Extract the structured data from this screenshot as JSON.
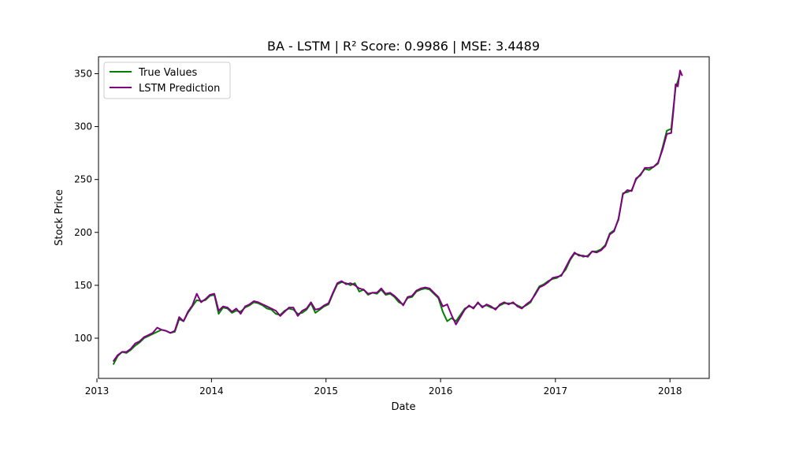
{
  "chart_data": {
    "type": "line",
    "title": "BA - LSTM | R² Score: 0.9986 | MSE: 3.4489",
    "xlabel": "Date",
    "ylabel": "Stock Price",
    "xlim": [
      "2013-01-06",
      "2018-05-06"
    ],
    "ylim": [
      62,
      366
    ],
    "x_ticks": [
      {
        "date": "2013-01-01",
        "label": "2013"
      },
      {
        "date": "2014-01-01",
        "label": "2014"
      },
      {
        "date": "2015-01-01",
        "label": "2015"
      },
      {
        "date": "2016-01-01",
        "label": "2016"
      },
      {
        "date": "2017-01-01",
        "label": "2017"
      },
      {
        "date": "2018-01-01",
        "label": "2018"
      }
    ],
    "y_ticks": [
      100,
      150,
      200,
      250,
      300,
      350
    ],
    "grid": false,
    "legend_position": "top-left",
    "series": [
      {
        "name": "True Values",
        "color": "#008000",
        "points": [
          [
            "2013-02-22",
            75
          ],
          [
            "2013-03-08",
            83
          ],
          [
            "2013-03-22",
            87
          ],
          [
            "2013-04-05",
            86
          ],
          [
            "2013-04-19",
            89
          ],
          [
            "2013-05-03",
            93
          ],
          [
            "2013-05-17",
            96
          ],
          [
            "2013-05-31",
            100
          ],
          [
            "2013-06-14",
            102
          ],
          [
            "2013-06-28",
            104
          ],
          [
            "2013-07-12",
            106
          ],
          [
            "2013-07-26",
            108
          ],
          [
            "2013-08-09",
            107
          ],
          [
            "2013-08-23",
            105
          ],
          [
            "2013-09-06",
            106
          ],
          [
            "2013-09-20",
            118
          ],
          [
            "2013-10-04",
            116
          ],
          [
            "2013-10-18",
            124
          ],
          [
            "2013-11-01",
            130
          ],
          [
            "2013-11-15",
            136
          ],
          [
            "2013-11-29",
            135
          ],
          [
            "2013-12-13",
            136
          ],
          [
            "2013-12-27",
            140
          ],
          [
            "2014-01-10",
            141
          ],
          [
            "2014-01-24",
            123
          ],
          [
            "2014-02-07",
            129
          ],
          [
            "2014-02-21",
            128
          ],
          [
            "2014-03-07",
            124
          ],
          [
            "2014-03-21",
            126
          ],
          [
            "2014-04-04",
            125
          ],
          [
            "2014-04-18",
            129
          ],
          [
            "2014-05-02",
            131
          ],
          [
            "2014-05-16",
            134
          ],
          [
            "2014-05-30",
            133
          ],
          [
            "2014-06-13",
            131
          ],
          [
            "2014-06-27",
            128
          ],
          [
            "2014-07-11",
            127
          ],
          [
            "2014-07-25",
            123
          ],
          [
            "2014-08-08",
            122
          ],
          [
            "2014-08-22",
            126
          ],
          [
            "2014-09-05",
            128
          ],
          [
            "2014-09-19",
            127
          ],
          [
            "2014-10-03",
            123
          ],
          [
            "2014-10-17",
            124
          ],
          [
            "2014-10-31",
            127
          ],
          [
            "2014-11-14",
            133
          ],
          [
            "2014-11-28",
            124
          ],
          [
            "2014-12-12",
            127
          ],
          [
            "2014-12-26",
            130
          ],
          [
            "2015-01-09",
            132
          ],
          [
            "2015-01-23",
            142
          ],
          [
            "2015-02-06",
            151
          ],
          [
            "2015-02-20",
            153
          ],
          [
            "2015-03-06",
            152
          ],
          [
            "2015-03-20",
            150
          ],
          [
            "2015-04-03",
            152
          ],
          [
            "2015-04-17",
            144
          ],
          [
            "2015-05-01",
            146
          ],
          [
            "2015-05-15",
            141
          ],
          [
            "2015-05-29",
            143
          ],
          [
            "2015-06-12",
            142
          ],
          [
            "2015-06-26",
            146
          ],
          [
            "2015-07-10",
            141
          ],
          [
            "2015-07-24",
            142
          ],
          [
            "2015-08-07",
            139
          ],
          [
            "2015-08-21",
            134
          ],
          [
            "2015-09-04",
            132
          ],
          [
            "2015-09-18",
            138
          ],
          [
            "2015-10-02",
            139
          ],
          [
            "2015-10-16",
            144
          ],
          [
            "2015-10-30",
            146
          ],
          [
            "2015-11-13",
            147
          ],
          [
            "2015-11-27",
            146
          ],
          [
            "2015-12-11",
            142
          ],
          [
            "2015-12-25",
            138
          ],
          [
            "2016-01-08",
            125
          ],
          [
            "2016-01-22",
            116
          ],
          [
            "2016-02-05",
            119
          ],
          [
            "2016-02-19",
            116
          ],
          [
            "2016-03-04",
            122
          ],
          [
            "2016-03-18",
            128
          ],
          [
            "2016-04-01",
            130
          ],
          [
            "2016-04-15",
            129
          ],
          [
            "2016-04-29",
            133
          ],
          [
            "2016-05-13",
            130
          ],
          [
            "2016-05-27",
            131
          ],
          [
            "2016-06-10",
            129
          ],
          [
            "2016-06-24",
            128
          ],
          [
            "2016-07-08",
            131
          ],
          [
            "2016-07-22",
            133
          ],
          [
            "2016-08-05",
            133
          ],
          [
            "2016-08-19",
            133
          ],
          [
            "2016-09-02",
            131
          ],
          [
            "2016-09-16",
            129
          ],
          [
            "2016-09-30",
            131
          ],
          [
            "2016-10-14",
            134
          ],
          [
            "2016-10-28",
            142
          ],
          [
            "2016-11-11",
            149
          ],
          [
            "2016-11-25",
            151
          ],
          [
            "2016-12-09",
            154
          ],
          [
            "2016-12-23",
            156
          ],
          [
            "2017-01-06",
            157
          ],
          [
            "2017-01-20",
            160
          ],
          [
            "2017-02-03",
            165
          ],
          [
            "2017-02-17",
            174
          ],
          [
            "2017-03-03",
            180
          ],
          [
            "2017-03-17",
            179
          ],
          [
            "2017-03-31",
            177
          ],
          [
            "2017-04-14",
            178
          ],
          [
            "2017-04-28",
            182
          ],
          [
            "2017-05-12",
            182
          ],
          [
            "2017-05-26",
            184
          ],
          [
            "2017-06-09",
            188
          ],
          [
            "2017-06-23",
            199
          ],
          [
            "2017-07-07",
            202
          ],
          [
            "2017-07-21",
            212
          ],
          [
            "2017-08-04",
            237
          ],
          [
            "2017-08-18",
            238
          ],
          [
            "2017-09-01",
            240
          ],
          [
            "2017-09-15",
            250
          ],
          [
            "2017-09-29",
            255
          ],
          [
            "2017-10-13",
            260
          ],
          [
            "2017-10-27",
            259
          ],
          [
            "2017-11-10",
            262
          ],
          [
            "2017-11-24",
            265
          ],
          [
            "2017-12-08",
            280
          ],
          [
            "2017-12-22",
            296
          ],
          [
            "2018-01-05",
            298
          ],
          [
            "2018-01-12",
            318
          ],
          [
            "2018-01-19",
            337
          ],
          [
            "2018-01-26",
            343
          ],
          [
            "2018-02-02",
            350
          ]
        ]
      },
      {
        "name": "LSTM Prediction",
        "color": "#800080",
        "points": [
          [
            "2013-02-22",
            78
          ],
          [
            "2013-03-08",
            84
          ],
          [
            "2013-03-22",
            87
          ],
          [
            "2013-04-05",
            87
          ],
          [
            "2013-04-19",
            90
          ],
          [
            "2013-05-03",
            95
          ],
          [
            "2013-05-17",
            97
          ],
          [
            "2013-05-31",
            101
          ],
          [
            "2013-06-14",
            103
          ],
          [
            "2013-06-28",
            105
          ],
          [
            "2013-07-12",
            110
          ],
          [
            "2013-07-26",
            108
          ],
          [
            "2013-08-09",
            107
          ],
          [
            "2013-08-23",
            105
          ],
          [
            "2013-09-06",
            107
          ],
          [
            "2013-09-20",
            120
          ],
          [
            "2013-10-04",
            116
          ],
          [
            "2013-10-18",
            125
          ],
          [
            "2013-11-01",
            131
          ],
          [
            "2013-11-15",
            142
          ],
          [
            "2013-11-29",
            134
          ],
          [
            "2013-12-13",
            137
          ],
          [
            "2013-12-27",
            141
          ],
          [
            "2014-01-10",
            142
          ],
          [
            "2014-01-24",
            126
          ],
          [
            "2014-02-07",
            130
          ],
          [
            "2014-02-21",
            129
          ],
          [
            "2014-03-07",
            125
          ],
          [
            "2014-03-21",
            128
          ],
          [
            "2014-04-04",
            123
          ],
          [
            "2014-04-18",
            130
          ],
          [
            "2014-05-02",
            132
          ],
          [
            "2014-05-16",
            135
          ],
          [
            "2014-05-30",
            134
          ],
          [
            "2014-06-13",
            132
          ],
          [
            "2014-06-27",
            130
          ],
          [
            "2014-07-11",
            128
          ],
          [
            "2014-07-25",
            126
          ],
          [
            "2014-08-08",
            121
          ],
          [
            "2014-08-22",
            125
          ],
          [
            "2014-09-05",
            129
          ],
          [
            "2014-09-19",
            129
          ],
          [
            "2014-10-03",
            121
          ],
          [
            "2014-10-17",
            126
          ],
          [
            "2014-10-31",
            128
          ],
          [
            "2014-11-14",
            134
          ],
          [
            "2014-11-28",
            127
          ],
          [
            "2014-12-12",
            128
          ],
          [
            "2014-12-26",
            131
          ],
          [
            "2015-01-09",
            133
          ],
          [
            "2015-01-23",
            143
          ],
          [
            "2015-02-06",
            152
          ],
          [
            "2015-02-20",
            154
          ],
          [
            "2015-03-06",
            151
          ],
          [
            "2015-03-20",
            152
          ],
          [
            "2015-04-03",
            150
          ],
          [
            "2015-04-17",
            147
          ],
          [
            "2015-05-01",
            146
          ],
          [
            "2015-05-15",
            142
          ],
          [
            "2015-05-29",
            143
          ],
          [
            "2015-06-12",
            143
          ],
          [
            "2015-06-26",
            147
          ],
          [
            "2015-07-10",
            142
          ],
          [
            "2015-07-24",
            143
          ],
          [
            "2015-08-07",
            140
          ],
          [
            "2015-08-21",
            136
          ],
          [
            "2015-09-04",
            131
          ],
          [
            "2015-09-18",
            139
          ],
          [
            "2015-10-02",
            140
          ],
          [
            "2015-10-16",
            145
          ],
          [
            "2015-10-30",
            147
          ],
          [
            "2015-11-13",
            148
          ],
          [
            "2015-11-27",
            147
          ],
          [
            "2015-12-11",
            143
          ],
          [
            "2015-12-25",
            139
          ],
          [
            "2016-01-08",
            130
          ],
          [
            "2016-01-22",
            132
          ],
          [
            "2016-02-05",
            122
          ],
          [
            "2016-02-19",
            113
          ],
          [
            "2016-03-04",
            120
          ],
          [
            "2016-03-18",
            127
          ],
          [
            "2016-04-01",
            131
          ],
          [
            "2016-04-15",
            128
          ],
          [
            "2016-04-29",
            134
          ],
          [
            "2016-05-13",
            129
          ],
          [
            "2016-05-27",
            132
          ],
          [
            "2016-06-10",
            130
          ],
          [
            "2016-06-24",
            127
          ],
          [
            "2016-07-08",
            132
          ],
          [
            "2016-07-22",
            134
          ],
          [
            "2016-08-05",
            132
          ],
          [
            "2016-08-19",
            134
          ],
          [
            "2016-09-02",
            130
          ],
          [
            "2016-09-16",
            128
          ],
          [
            "2016-09-30",
            132
          ],
          [
            "2016-10-14",
            135
          ],
          [
            "2016-10-28",
            141
          ],
          [
            "2016-11-11",
            148
          ],
          [
            "2016-11-25",
            150
          ],
          [
            "2016-12-09",
            153
          ],
          [
            "2016-12-23",
            157
          ],
          [
            "2017-01-06",
            158
          ],
          [
            "2017-01-20",
            159
          ],
          [
            "2017-02-03",
            167
          ],
          [
            "2017-02-17",
            175
          ],
          [
            "2017-03-03",
            181
          ],
          [
            "2017-03-17",
            178
          ],
          [
            "2017-03-31",
            178
          ],
          [
            "2017-04-14",
            177
          ],
          [
            "2017-04-28",
            182
          ],
          [
            "2017-05-12",
            181
          ],
          [
            "2017-05-26",
            183
          ],
          [
            "2017-06-09",
            187
          ],
          [
            "2017-06-23",
            198
          ],
          [
            "2017-07-07",
            201
          ],
          [
            "2017-07-21",
            213
          ],
          [
            "2017-08-04",
            236
          ],
          [
            "2017-08-18",
            240
          ],
          [
            "2017-09-01",
            239
          ],
          [
            "2017-09-15",
            251
          ],
          [
            "2017-09-29",
            254
          ],
          [
            "2017-10-13",
            261
          ],
          [
            "2017-10-27",
            261
          ],
          [
            "2017-11-10",
            262
          ],
          [
            "2017-11-24",
            266
          ],
          [
            "2017-12-08",
            278
          ],
          [
            "2017-12-22",
            293
          ],
          [
            "2018-01-05",
            294
          ],
          [
            "2018-01-12",
            315
          ],
          [
            "2018-01-19",
            340
          ],
          [
            "2018-01-26",
            338
          ],
          [
            "2018-02-02",
            353
          ],
          [
            "2018-02-09",
            348
          ]
        ]
      }
    ]
  }
}
